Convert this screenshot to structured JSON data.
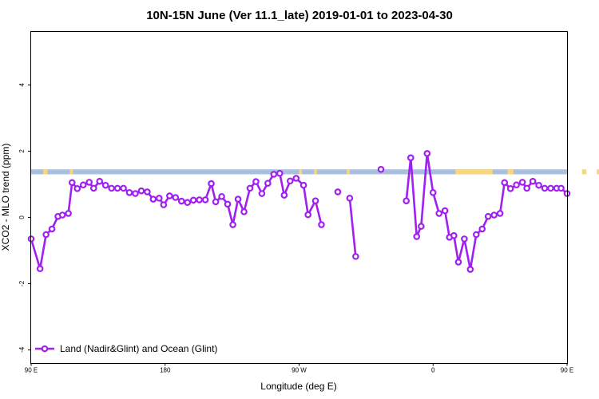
{
  "chart_data": {
    "type": "line",
    "title": "10N-15N June (Ver 11.1_late)   2019-01-01 to 2023-04-30",
    "xlabel": "Longitude (deg E)",
    "ylabel": "XCO2 - MLO trend (ppm)",
    "xlim": [
      90,
      450
    ],
    "ylim": [
      -4.4,
      5.6
    ],
    "x_tick_values": [
      90,
      180,
      270,
      360,
      450,
      540
    ],
    "x_tick_labels": [
      "90 E",
      "180",
      "90 W",
      "0",
      "90 E",
      "180"
    ],
    "y_tick_values": [
      -4,
      -2,
      0,
      2,
      4
    ],
    "y_tick_labels": [
      "-4",
      "-2",
      "0",
      "2",
      "4"
    ],
    "grid": false,
    "legend_position": "bottom-left",
    "surface_band": {
      "y_range": [
        1.3,
        1.45
      ],
      "ocean_color": "#a9bfe0",
      "land_color": "#f7d77a",
      "land_segments": [
        [
          98,
          101
        ],
        [
          116,
          118
        ],
        [
          270,
          272
        ],
        [
          280,
          282
        ],
        [
          302,
          304
        ],
        [
          375,
          400
        ],
        [
          410,
          414
        ],
        [
          460,
          463
        ],
        [
          470,
          476
        ],
        [
          492,
          493
        ]
      ]
    },
    "series": [
      {
        "name": "Land (Nadir&Glint) and Ocean (Glint)",
        "color": "#a020f0",
        "segments": [
          [
            [
              90,
              -0.65
            ],
            [
              96,
              -1.55
            ],
            [
              100,
              -0.52
            ],
            [
              104,
              -0.35
            ],
            [
              108,
              0.03
            ],
            [
              111,
              0.07
            ],
            [
              115,
              0.12
            ],
            [
              117.5,
              1.05
            ],
            [
              121,
              0.87
            ],
            [
              125,
              0.98
            ],
            [
              129,
              1.06
            ],
            [
              132,
              0.88
            ],
            [
              136,
              1.09
            ],
            [
              140,
              0.97
            ],
            [
              144,
              0.88
            ],
            [
              148,
              0.88
            ],
            [
              152,
              0.88
            ],
            [
              156,
              0.75
            ],
            [
              160,
              0.72
            ],
            [
              164,
              0.8
            ],
            [
              168,
              0.77
            ],
            [
              172,
              0.55
            ],
            [
              176,
              0.58
            ],
            [
              179,
              0.38
            ],
            [
              183,
              0.65
            ],
            [
              187,
              0.6
            ],
            [
              191,
              0.49
            ],
            [
              195,
              0.45
            ],
            [
              199,
              0.52
            ],
            [
              203,
              0.53
            ],
            [
              207,
              0.53
            ],
            [
              211,
              1.02
            ],
            [
              214,
              0.47
            ],
            [
              218,
              0.63
            ],
            [
              222,
              0.4
            ],
            [
              225.5,
              -0.22
            ],
            [
              229,
              0.55
            ],
            [
              233,
              0.17
            ],
            [
              237,
              0.88
            ],
            [
              241,
              1.08
            ],
            [
              245,
              0.72
            ],
            [
              249,
              1.03
            ],
            [
              253,
              1.3
            ],
            [
              257,
              1.33
            ],
            [
              260,
              0.67
            ],
            [
              264,
              1.1
            ],
            [
              268,
              1.18
            ],
            [
              273,
              0.97
            ],
            [
              276,
              0.08
            ],
            [
              281,
              0.5
            ],
            [
              285,
              -0.22
            ]
          ],
          [
            [
              296,
              0.77
            ]
          ],
          [
            [
              304,
              0.58
            ],
            [
              308,
              -1.18
            ]
          ],
          [
            [
              325,
              1.45
            ]
          ],
          [
            [
              342,
              0.5
            ],
            [
              345,
              1.8
            ],
            [
              349,
              -0.58
            ],
            [
              352,
              -0.27
            ],
            [
              356,
              1.93
            ],
            [
              360,
              0.75
            ],
            [
              364,
              0.12
            ],
            [
              368,
              0.2
            ],
            [
              371,
              -0.6
            ],
            [
              374,
              -0.55
            ],
            [
              377,
              -1.35
            ],
            [
              381,
              -0.65
            ],
            [
              385,
              -1.57
            ],
            [
              389,
              -0.52
            ],
            [
              393,
              -0.35
            ],
            [
              397,
              0.03
            ],
            [
              401,
              0.07
            ],
            [
              405,
              0.12
            ],
            [
              408,
              1.05
            ],
            [
              412,
              0.87
            ],
            [
              416,
              0.98
            ],
            [
              420,
              1.06
            ],
            [
              423,
              0.88
            ],
            [
              427,
              1.09
            ],
            [
              431,
              0.97
            ],
            [
              435,
              0.88
            ],
            [
              439,
              0.88
            ],
            [
              443,
              0.88
            ],
            [
              446,
              0.88
            ],
            [
              450,
              0.72
            ]
          ]
        ]
      }
    ]
  }
}
